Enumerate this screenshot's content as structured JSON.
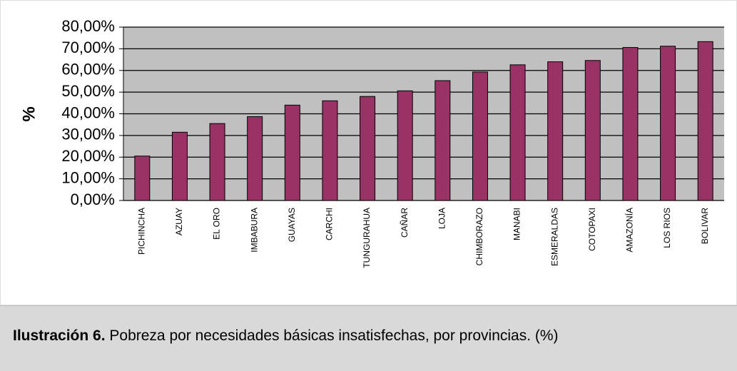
{
  "chart_data": {
    "type": "bar",
    "y_label": "%",
    "categories": [
      "PICHINCHA",
      "AZUAY",
      "EL ORO",
      "IMBABURA",
      "GUAYAS",
      "CARCHI",
      "TUNGURAHUA",
      "CAÑAR",
      "LOJA",
      "CHIMBORAZO",
      "MANABI",
      "ESMERALDAS",
      "COTOPAXI",
      "AMAZONÍA",
      "LOS RIOS",
      "BOLIVAR"
    ],
    "values": [
      20.5,
      31.5,
      35.5,
      38.7,
      44,
      46,
      48,
      50.6,
      55.3,
      59.3,
      62.6,
      64,
      64.6,
      70.6,
      71.2,
      73.3
    ],
    "color": "#993366",
    "ylim": [
      0,
      80
    ],
    "yticks": [
      {
        "value": 0,
        "label": "0,00%"
      },
      {
        "value": 10,
        "label": "10,00%"
      },
      {
        "value": 20,
        "label": "20,00%"
      },
      {
        "value": 30,
        "label": "30,00%"
      },
      {
        "value": 40,
        "label": "40,00%"
      },
      {
        "value": 50,
        "label": "50,00%"
      },
      {
        "value": 60,
        "label": "60,00%"
      },
      {
        "value": 70,
        "label": "70,00%"
      },
      {
        "value": 80,
        "label": "80,00%"
      }
    ],
    "grid": true
  },
  "caption": {
    "label": "Ilustración 6.",
    "text": "Pobreza por necesidades básicas insatisfechas, por provincias. (%)"
  }
}
